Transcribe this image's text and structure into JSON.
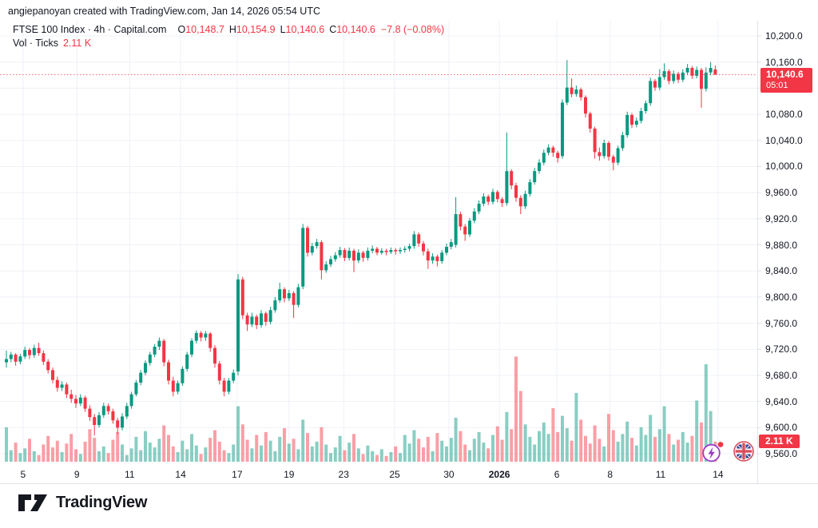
{
  "header": {
    "attribution": "angiepanoyan created with TradingView.com, Jan 14, 2026 05:54 UTC"
  },
  "legend": {
    "symbol_title": "FTSE 100 Index · 4h · Capital.com",
    "ohlc": [
      {
        "label": "O",
        "value": "10,148.7"
      },
      {
        "label": "H",
        "value": "10,154.9"
      },
      {
        "label": "L",
        "value": "10,140.6"
      },
      {
        "label": "C",
        "value": "10,140.6"
      }
    ],
    "change": "−7.8 (−0.08%)",
    "volume_row": {
      "label": "Vol · Ticks",
      "value": "2.11 K"
    }
  },
  "price_axis": {
    "ticks": [
      {
        "label": "10,200.0",
        "price": 10200
      },
      {
        "label": "10,160.0",
        "price": 10160
      },
      {
        "label": "10,120.0",
        "price": 10120
      },
      {
        "label": "10,080.0",
        "price": 10080
      },
      {
        "label": "10,040.0",
        "price": 10040
      },
      {
        "label": "10,000.0",
        "price": 10000
      },
      {
        "label": "9,960.0",
        "price": 9960
      },
      {
        "label": "9,920.0",
        "price": 9920
      },
      {
        "label": "9,880.0",
        "price": 9880
      },
      {
        "label": "9,840.0",
        "price": 9840
      },
      {
        "label": "9,800.0",
        "price": 9800
      },
      {
        "label": "9,760.0",
        "price": 9760
      },
      {
        "label": "9,720.0",
        "price": 9720
      },
      {
        "label": "9,680.0",
        "price": 9680
      },
      {
        "label": "9,640.0",
        "price": 9640
      },
      {
        "label": "9,600.0",
        "price": 9600
      },
      {
        "label": "9,560.0",
        "price": 9560
      }
    ],
    "last_price_label": {
      "price_text": "10,140.6",
      "countdown": "05:01"
    },
    "volume_label": "2.11 K"
  },
  "time_axis": {
    "ticks": [
      {
        "label": "5",
        "i": 3.6
      },
      {
        "label": "9",
        "i": 15.2
      },
      {
        "label": "11",
        "i": 26.6
      },
      {
        "label": "14",
        "i": 37.6
      },
      {
        "label": "17",
        "i": 49.8
      },
      {
        "label": "19",
        "i": 61.0
      },
      {
        "label": "23",
        "i": 72.8
      },
      {
        "label": "25",
        "i": 83.8
      },
      {
        "label": "30",
        "i": 95.5
      },
      {
        "label": "2026",
        "i": 106.4,
        "bold": true
      },
      {
        "label": "6",
        "i": 118.8
      },
      {
        "label": "8",
        "i": 130.3
      },
      {
        "label": "11",
        "i": 141.2
      },
      {
        "label": "14",
        "i": 153.6
      }
    ]
  },
  "footer": {
    "brand": "TradingView"
  },
  "colors": {
    "up": "#089981",
    "down": "#f23645",
    "volume_opacity": 0.48,
    "grid": "#eff1f7",
    "separator": "#e0e3eb",
    "axis_text": "#131722",
    "accent_red": "#f23645",
    "icon_purple": "#9b3cc7",
    "flag_red": "#d94f5c",
    "flag_blue": "#33418f"
  },
  "chart_data": {
    "type": "candlestick_with_volume",
    "title": "FTSE 100 Index",
    "interval": "4h",
    "source": "Capital.com",
    "y_range": [
      9560,
      10200
    ],
    "y_tick_step": 40,
    "volume_ylim_k": [
      0,
      11.2
    ],
    "grid": true,
    "last": {
      "open": 10148.7,
      "high": 10154.9,
      "low": 10140.6,
      "close": 10140.6,
      "change": -7.8,
      "change_pct": -0.08,
      "volume_ticks_k": 2.11
    },
    "x_tick_labels": [
      "5",
      "9",
      "11",
      "14",
      "17",
      "19",
      "23",
      "25",
      "30",
      "2026",
      "6",
      "8",
      "11",
      "14"
    ],
    "candles_format": [
      "open",
      "high",
      "low",
      "close",
      "volume_k"
    ],
    "candles": [
      [
        9700,
        9718,
        9692,
        9705,
        3.6
      ],
      [
        9705,
        9716,
        9700,
        9712,
        1.2
      ],
      [
        9712,
        9714,
        9695,
        9701,
        2.0
      ],
      [
        9701,
        9713,
        9697,
        9709,
        0.9
      ],
      [
        9709,
        9724,
        9705,
        9719,
        1.4
      ],
      [
        9719,
        9722,
        9705,
        9711,
        2.4
      ],
      [
        9711,
        9727,
        9707,
        9722,
        1.1
      ],
      [
        9722,
        9730,
        9710,
        9714,
        0.7
      ],
      [
        9714,
        9718,
        9696,
        9701,
        1.8
      ],
      [
        9701,
        9705,
        9683,
        9688,
        2.7
      ],
      [
        9688,
        9692,
        9668,
        9673,
        1.5
      ],
      [
        9673,
        9678,
        9655,
        9661,
        2.2
      ],
      [
        9661,
        9671,
        9656,
        9666,
        1.0
      ],
      [
        9666,
        9669,
        9645,
        9651,
        1.9
      ],
      [
        9651,
        9658,
        9638,
        9644,
        2.9
      ],
      [
        9644,
        9650,
        9630,
        9637,
        1.3
      ],
      [
        9637,
        9651,
        9633,
        9646,
        0.8
      ],
      [
        9646,
        9649,
        9624,
        9629,
        2.1
      ],
      [
        9629,
        9634,
        9610,
        9616,
        3.4
      ],
      [
        9616,
        9621,
        9588,
        9604,
        2.5
      ],
      [
        9604,
        9624,
        9600,
        9619,
        1.1
      ],
      [
        9619,
        9638,
        9615,
        9633,
        1.6
      ],
      [
        9633,
        9637,
        9620,
        9625,
        0.9
      ],
      [
        9625,
        9629,
        9606,
        9611,
        2.3
      ],
      [
        9611,
        9615,
        9590,
        9600,
        3.1
      ],
      [
        9600,
        9622,
        9596,
        9617,
        1.8
      ],
      [
        9617,
        9638,
        9613,
        9633,
        0.7
      ],
      [
        9633,
        9655,
        9629,
        9651,
        1.4
      ],
      [
        9651,
        9673,
        9648,
        9669,
        2.6
      ],
      [
        9669,
        9688,
        9665,
        9684,
        1.2
      ],
      [
        9684,
        9703,
        9680,
        9699,
        3.2
      ],
      [
        9699,
        9716,
        9695,
        9712,
        2.0
      ],
      [
        9712,
        9728,
        9708,
        9724,
        1.5
      ],
      [
        9724,
        9738,
        9719,
        9733,
        2.4
      ],
      [
        9733,
        9736,
        9694,
        9700,
        3.8
      ],
      [
        9700,
        9704,
        9666,
        9672,
        2.8
      ],
      [
        9672,
        9678,
        9648,
        9655,
        1.6
      ],
      [
        9655,
        9672,
        9651,
        9668,
        1.0
      ],
      [
        9668,
        9694,
        9664,
        9690,
        2.2
      ],
      [
        9690,
        9716,
        9686,
        9712,
        1.3
      ],
      [
        9712,
        9737,
        9708,
        9733,
        2.9
      ],
      [
        9733,
        9749,
        9729,
        9745,
        1.7
      ],
      [
        9745,
        9748,
        9732,
        9738,
        0.8
      ],
      [
        9738,
        9748,
        9733,
        9744,
        1.5
      ],
      [
        9744,
        9746,
        9716,
        9722,
        2.5
      ],
      [
        9722,
        9726,
        9692,
        9698,
        3.3
      ],
      [
        9698,
        9702,
        9666,
        9672,
        2.1
      ],
      [
        9672,
        9676,
        9648,
        9655,
        1.2
      ],
      [
        9655,
        9676,
        9651,
        9672,
        0.9
      ],
      [
        9672,
        9689,
        9668,
        9684,
        1.8
      ],
      [
        9686,
        9835,
        9680,
        9827,
        5.8
      ],
      [
        9827,
        9831,
        9766,
        9772,
        3.9
      ],
      [
        9772,
        9776,
        9748,
        9758,
        2.3
      ],
      [
        9758,
        9776,
        9754,
        9770,
        1.4
      ],
      [
        9770,
        9773,
        9751,
        9757,
        2.8
      ],
      [
        9757,
        9780,
        9753,
        9775,
        1.7
      ],
      [
        9775,
        9778,
        9756,
        9762,
        3.1
      ],
      [
        9762,
        9785,
        9758,
        9780,
        2.2
      ],
      [
        9780,
        9800,
        9776,
        9795,
        1.1
      ],
      [
        9795,
        9822,
        9791,
        9812,
        2.6
      ],
      [
        9812,
        9815,
        9792,
        9798,
        3.5
      ],
      [
        9798,
        9811,
        9794,
        9806,
        1.9
      ],
      [
        9806,
        9809,
        9768,
        9788,
        2.4
      ],
      [
        9788,
        9820,
        9784,
        9815,
        1.3
      ],
      [
        9816,
        9912,
        9812,
        9906,
        4.4
      ],
      [
        9906,
        9909,
        9862,
        9868,
        3.0
      ],
      [
        9868,
        9883,
        9864,
        9878,
        1.6
      ],
      [
        9878,
        9889,
        9874,
        9884,
        2.1
      ],
      [
        9884,
        9887,
        9827,
        9841,
        3.6
      ],
      [
        9841,
        9855,
        9837,
        9850,
        1.8
      ],
      [
        9850,
        9863,
        9846,
        9858,
        0.9
      ],
      [
        9858,
        9869,
        9854,
        9864,
        1.5
      ],
      [
        9864,
        9877,
        9860,
        9872,
        2.7
      ],
      [
        9872,
        9875,
        9855,
        9860,
        1.2
      ],
      [
        9860,
        9876,
        9856,
        9871,
        2.0
      ],
      [
        9871,
        9874,
        9838,
        9856,
        2.9
      ],
      [
        9856,
        9873,
        9852,
        9868,
        1.4
      ],
      [
        9868,
        9871,
        9854,
        9860,
        0.8
      ],
      [
        9860,
        9876,
        9856,
        9871,
        1.7
      ],
      [
        9871,
        9879,
        9867,
        9874,
        1.1
      ],
      [
        9874,
        9877,
        9864,
        9868,
        0.7
      ],
      [
        9868,
        9875,
        9865,
        9871,
        1.3
      ],
      [
        9871,
        9874,
        9864,
        9869,
        0.6
      ],
      [
        9869,
        9876,
        9866,
        9872,
        1.0
      ],
      [
        9872,
        9875,
        9865,
        9870,
        1.6
      ],
      [
        9870,
        9876,
        9866,
        9872,
        0.9
      ],
      [
        9872,
        9878,
        9868,
        9874,
        2.8
      ],
      [
        9874,
        9882,
        9870,
        9878,
        1.9
      ],
      [
        9878,
        9901,
        9874,
        9896,
        3.3
      ],
      [
        9896,
        9899,
        9877,
        9882,
        2.4
      ],
      [
        9882,
        9886,
        9864,
        9870,
        1.5
      ],
      [
        9870,
        9874,
        9843,
        9856,
        2.6
      ],
      [
        9856,
        9867,
        9851,
        9862,
        1.1
      ],
      [
        9862,
        9865,
        9847,
        9855,
        3.0
      ],
      [
        9855,
        9872,
        9851,
        9868,
        2.2
      ],
      [
        9868,
        9882,
        9864,
        9877,
        1.6
      ],
      [
        9877,
        9889,
        9873,
        9884,
        2.5
      ],
      [
        9880,
        9953,
        9876,
        9927,
        4.6
      ],
      [
        9927,
        9931,
        9902,
        9908,
        3.2
      ],
      [
        9908,
        9912,
        9886,
        9896,
        1.8
      ],
      [
        9896,
        9921,
        9892,
        9917,
        1.2
      ],
      [
        9917,
        9936,
        9913,
        9931,
        2.4
      ],
      [
        9931,
        9948,
        9927,
        9943,
        3.1
      ],
      [
        9943,
        9959,
        9939,
        9954,
        2.0
      ],
      [
        9954,
        9957,
        9941,
        9946,
        1.4
      ],
      [
        9946,
        9966,
        9942,
        9961,
        2.8
      ],
      [
        9961,
        9964,
        9945,
        9950,
        3.7
      ],
      [
        9950,
        9953,
        9938,
        9944,
        2.3
      ],
      [
        9944,
        10052,
        9940,
        9993,
        5.2
      ],
      [
        9993,
        9996,
        9965,
        9971,
        3.4
      ],
      [
        9971,
        9975,
        9946,
        9952,
        11.0
      ],
      [
        9952,
        9956,
        9927,
        9939,
        7.4
      ],
      [
        9939,
        9963,
        9935,
        9958,
        3.9
      ],
      [
        9958,
        9981,
        9954,
        9976,
        2.6
      ],
      [
        9976,
        9998,
        9972,
        9993,
        1.8
      ],
      [
        9993,
        10011,
        9989,
        10006,
        3.2
      ],
      [
        10006,
        10026,
        10002,
        10021,
        4.1
      ],
      [
        10021,
        10034,
        10017,
        10029,
        2.9
      ],
      [
        10029,
        10032,
        10015,
        10021,
        5.6
      ],
      [
        10021,
        10024,
        10006,
        10013,
        3.1
      ],
      [
        10016,
        10103,
        10012,
        10098,
        4.8
      ],
      [
        10098,
        10163,
        10094,
        10121,
        3.5
      ],
      [
        10121,
        10135,
        10106,
        10111,
        2.2
      ],
      [
        10111,
        10124,
        10107,
        10118,
        7.2
      ],
      [
        10118,
        10121,
        10101,
        10106,
        4.4
      ],
      [
        10106,
        10109,
        10075,
        10081,
        2.7
      ],
      [
        10081,
        10084,
        10052,
        10058,
        1.9
      ],
      [
        10058,
        10061,
        10012,
        10022,
        3.8
      ],
      [
        10022,
        10029,
        10009,
        10016,
        2.4
      ],
      [
        10016,
        10041,
        10012,
        10036,
        1.6
      ],
      [
        10036,
        10039,
        10009,
        10015,
        5.0
      ],
      [
        10015,
        10018,
        9994,
        10006,
        3.3
      ],
      [
        10006,
        10032,
        10002,
        10028,
        2.1
      ],
      [
        10028,
        10053,
        10024,
        10048,
        2.9
      ],
      [
        10048,
        10084,
        10044,
        10079,
        4.2
      ],
      [
        10079,
        10082,
        10059,
        10064,
        2.5
      ],
      [
        10064,
        10075,
        10060,
        10070,
        1.7
      ],
      [
        10070,
        10090,
        10066,
        10085,
        3.6
      ],
      [
        10085,
        10101,
        10081,
        10097,
        2.8
      ],
      [
        10097,
        10136,
        10093,
        10131,
        4.9
      ],
      [
        10131,
        10134,
        10116,
        10121,
        2.6
      ],
      [
        10121,
        10149,
        10117,
        10137,
        3.4
      ],
      [
        10137,
        10158,
        10133,
        10146,
        5.8
      ],
      [
        10146,
        10149,
        10126,
        10131,
        2.9
      ],
      [
        10131,
        10147,
        10127,
        10142,
        1.8
      ],
      [
        10142,
        10145,
        10128,
        10133,
        2.3
      ],
      [
        10133,
        10149,
        10129,
        10144,
        3.1
      ],
      [
        10144,
        10157,
        10140,
        10151,
        2.0
      ],
      [
        10151,
        10154,
        10134,
        10139,
        2.7
      ],
      [
        10139,
        10153,
        10135,
        10148,
        6.4
      ],
      [
        10148,
        10151,
        10090,
        10119,
        4.1
      ],
      [
        10119,
        10152,
        10115,
        10144,
        10.2
      ],
      [
        10144,
        10160,
        10140,
        10151,
        5.3
      ],
      [
        10148.7,
        10154.9,
        10140.6,
        10140.6,
        2.11
      ]
    ]
  }
}
